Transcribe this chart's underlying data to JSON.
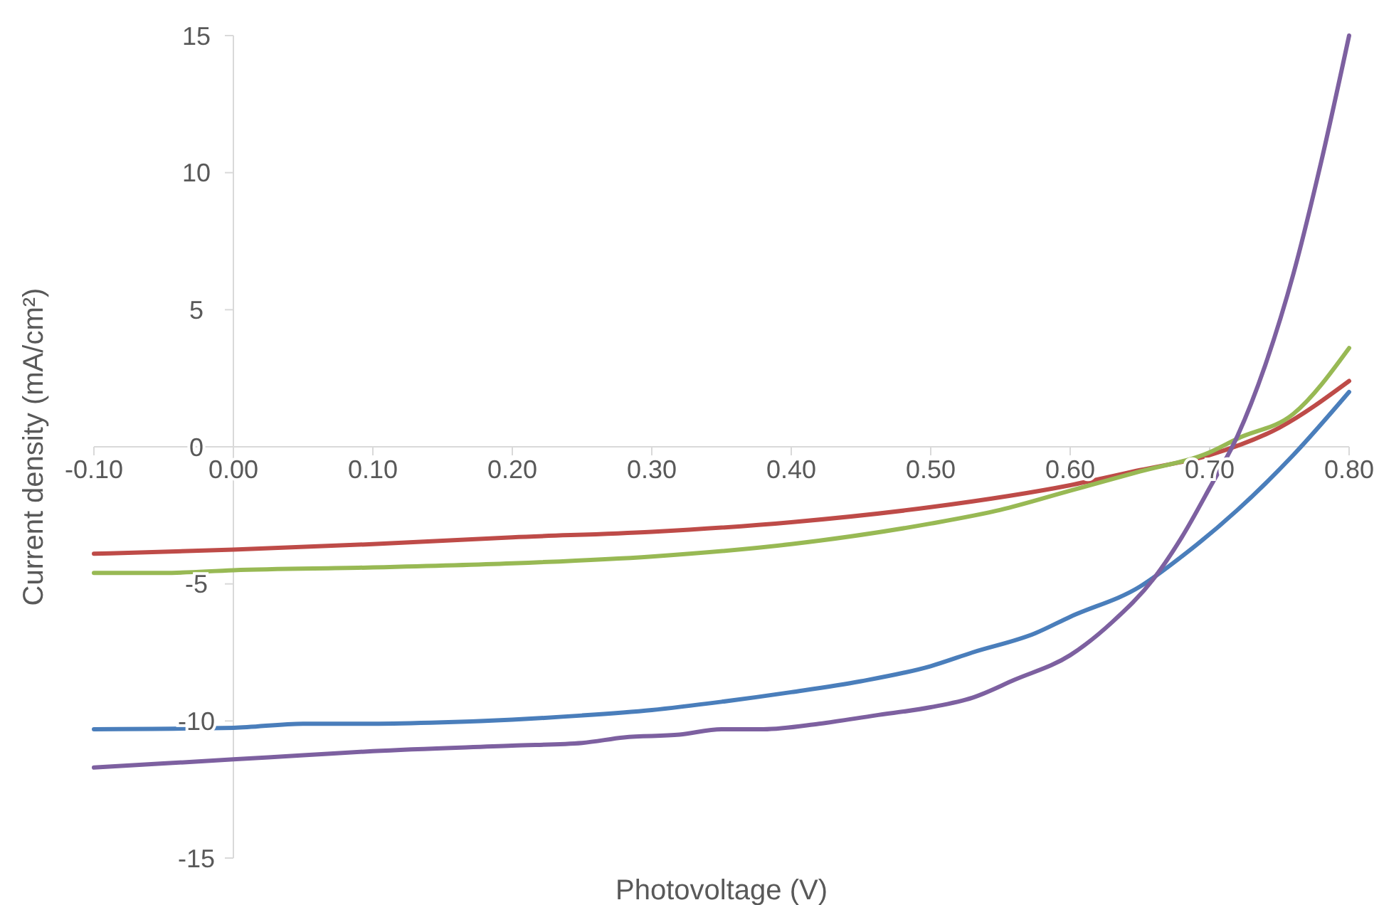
{
  "chart_data": {
    "type": "line",
    "xlabel": "Photovoltage (V)",
    "ylabel": "Current density (mA/cm²)",
    "xlim": [
      -0.1,
      0.8
    ],
    "ylim": [
      -15,
      15
    ],
    "xticks": [
      {
        "value": -0.1,
        "label": "-0.10"
      },
      {
        "value": 0,
        "label": "0.00"
      },
      {
        "value": 0.1,
        "label": "0.10"
      },
      {
        "value": 0.2,
        "label": "0.20"
      },
      {
        "value": 0.3,
        "label": "0.30"
      },
      {
        "value": 0.4,
        "label": "0.40"
      },
      {
        "value": 0.5,
        "label": "0.50"
      },
      {
        "value": 0.6,
        "label": "0.60"
      },
      {
        "value": 0.7,
        "label": "0.70"
      },
      {
        "value": 0.8,
        "label": "0.80"
      }
    ],
    "yticks": [
      -15,
      -10,
      -5,
      0,
      5,
      10,
      15
    ],
    "grid": false,
    "marker": "none",
    "line_style": "solid",
    "series": [
      {
        "color": "#4a7ebb",
        "x": [
          -0.1,
          0,
          0.05,
          0.1,
          0.15,
          0.2,
          0.25,
          0.3,
          0.35,
          0.4,
          0.45,
          0.5,
          0.53,
          0.575,
          0.6,
          0.65,
          0.68,
          0.72,
          0.76,
          0.8
        ],
        "values": [
          -10.3,
          -10.25,
          -10.1,
          -10.1,
          -10.05,
          -9.95,
          -9.8,
          -9.6,
          -9.3,
          -8.95,
          -8.55,
          -8,
          -7.5,
          -6.8,
          -6.2,
          -5.1,
          -4,
          -2.3,
          -0.3,
          2
        ]
      },
      {
        "color": "#be4b48",
        "x": [
          -0.1,
          0,
          0.1,
          0.2,
          0.3,
          0.4,
          0.5,
          0.6,
          0.65,
          0.7,
          0.75,
          0.8
        ],
        "values": [
          -3.9,
          -3.75,
          -3.55,
          -3.3,
          -3.1,
          -2.75,
          -2.2,
          -1.4,
          -0.85,
          -0.3,
          0.7,
          2.4
        ]
      },
      {
        "color": "#98b954",
        "x": [
          -0.1,
          -0.05,
          0,
          0.1,
          0.2,
          0.3,
          0.4,
          0.5,
          0.55,
          0.6,
          0.65,
          0.7,
          0.72,
          0.76,
          0.8
        ],
        "values": [
          -4.6,
          -4.6,
          -4.5,
          -4.4,
          -4.25,
          -4,
          -3.55,
          -2.8,
          -2.3,
          -1.6,
          -0.9,
          -0.2,
          0.3,
          1.2,
          3.6
        ]
      },
      {
        "color": "#7d60a0",
        "x": [
          -0.1,
          0,
          0.05,
          0.1,
          0.2,
          0.25,
          0.28,
          0.32,
          0.35,
          0.38,
          0.42,
          0.46,
          0.5,
          0.53,
          0.56,
          0.6,
          0.63,
          0.66,
          0.68,
          0.7,
          0.72,
          0.74,
          0.76,
          0.78,
          0.8
        ],
        "values": [
          -11.7,
          -11.4,
          -11.25,
          -11.1,
          -10.9,
          -10.8,
          -10.6,
          -10.5,
          -10.3,
          -10.3,
          -10.1,
          -9.8,
          -9.5,
          -9.15,
          -8.5,
          -7.6,
          -6.4,
          -4.8,
          -3.3,
          -1.5,
          0.4,
          3,
          6.3,
          10.4,
          15
        ]
      }
    ]
  }
}
